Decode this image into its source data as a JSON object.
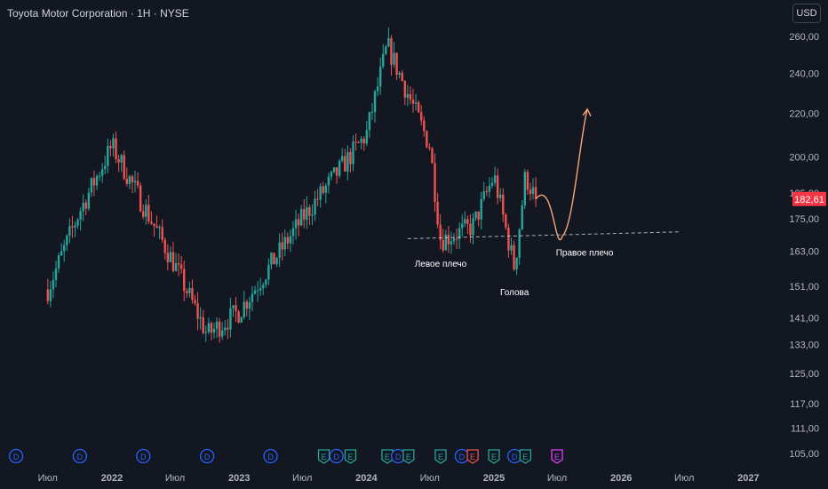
{
  "header": {
    "title": "Toyota Motor Corporation · 1H · NYSE",
    "currency_button": "USD"
  },
  "colors": {
    "background": "#131722",
    "up": "#26a69a",
    "down": "#ef5350",
    "axis_text": "#b2b5be",
    "price_label_bg": "#f23645",
    "projection": "#f7a77a",
    "neckline": "#d1d4dc"
  },
  "chart_data": {
    "type": "candlestick",
    "title": "Toyota Motor Corporation · 1H · NYSE",
    "currency": "USD",
    "y_scale": "log",
    "ylim": [
      103,
      265
    ],
    "y_ticks": [
      "260,00",
      "240,00",
      "220,00",
      "200,00",
      "185,00",
      "175,00",
      "163,00",
      "151,00",
      "141,00",
      "133,00",
      "125,00",
      "117,00",
      "111,00",
      "105,00"
    ],
    "current_price": "182,61",
    "x_ticks": [
      "Июл",
      "2022",
      "Июл",
      "2023",
      "Июл",
      "2024",
      "Июл",
      "2025",
      "Июл",
      "2026",
      "Июл",
      "2027"
    ],
    "series_summary": [
      {
        "period": "2021-07",
        "price": 150
      },
      {
        "period": "2021-10",
        "price": 178
      },
      {
        "period": "2022-01",
        "price": 205
      },
      {
        "period": "2022-07",
        "price": 158
      },
      {
        "period": "2022-10",
        "price": 136
      },
      {
        "period": "2023-01",
        "price": 143
      },
      {
        "period": "2023-07",
        "price": 175
      },
      {
        "period": "2024-01",
        "price": 210
      },
      {
        "period": "2024-03",
        "price": 255
      },
      {
        "period": "2024-07",
        "price": 205
      },
      {
        "period": "2024-08",
        "price": 167
      },
      {
        "period": "2024-11",
        "price": 172
      },
      {
        "period": "2025-01",
        "price": 192
      },
      {
        "period": "2025-03",
        "price": 157
      },
      {
        "period": "2025-04",
        "price": 192
      },
      {
        "period": "2025-05",
        "price": 182.61
      }
    ],
    "annotations": [
      "Левое плечо",
      "Голова",
      "Правое плечо"
    ],
    "event_markers": [
      "D",
      "D",
      "D",
      "D",
      "D",
      "E",
      "D",
      "E",
      "E",
      "D",
      "E",
      "E",
      "D",
      "E",
      "E",
      "D",
      "E",
      "E"
    ]
  }
}
